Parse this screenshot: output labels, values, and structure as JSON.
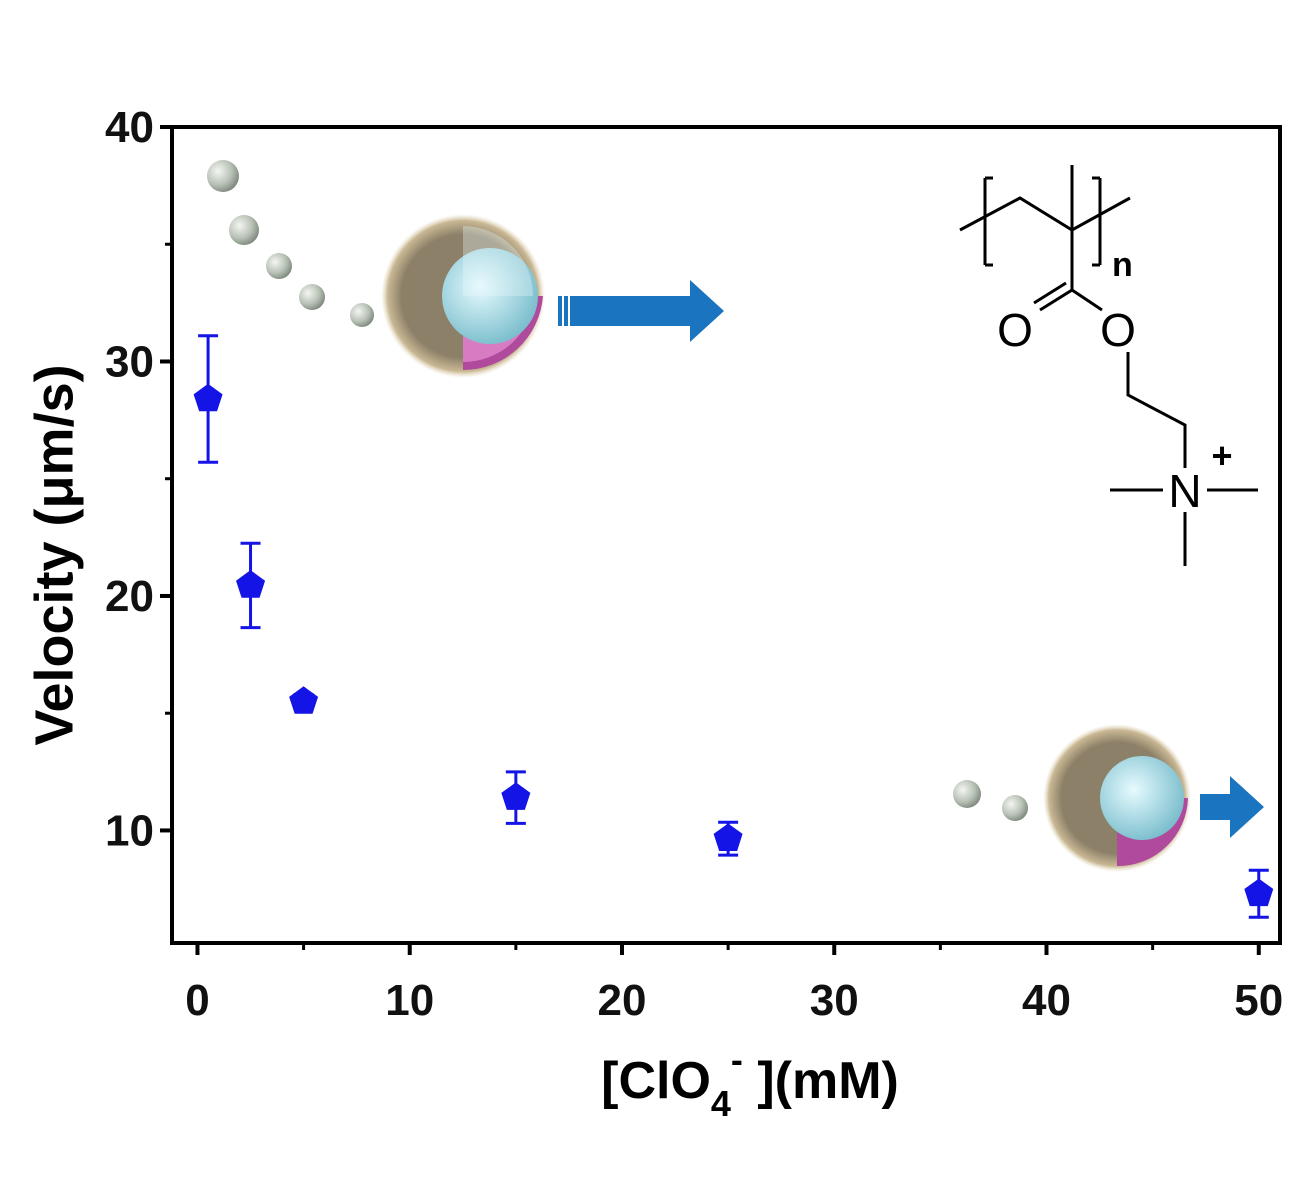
{
  "chart_data": {
    "type": "scatter",
    "ylabel": "Velocity (μm/s)",
    "xlabel": [
      "[ClO",
      "4",
      "-",
      " ](mM)"
    ],
    "x": [
      0.5,
      2.5,
      5,
      15,
      25,
      50
    ],
    "series": [
      {
        "color": "#1414e6",
        "values": [
          28.4,
          20.45,
          15.5,
          11.4,
          9.65,
          7.3
        ],
        "errors": [
          2.7,
          1.8,
          0.3,
          1.1,
          0.7,
          1.0
        ]
      }
    ],
    "xlim": [
      -1.2,
      51.0
    ],
    "ylim": [
      5.2,
      40
    ],
    "xticks": [
      0,
      10,
      20,
      30,
      40,
      50
    ],
    "yticks": [
      10,
      20,
      30,
      40
    ],
    "annotations": [
      "n",
      "O",
      "O",
      "N",
      "+"
    ]
  }
}
